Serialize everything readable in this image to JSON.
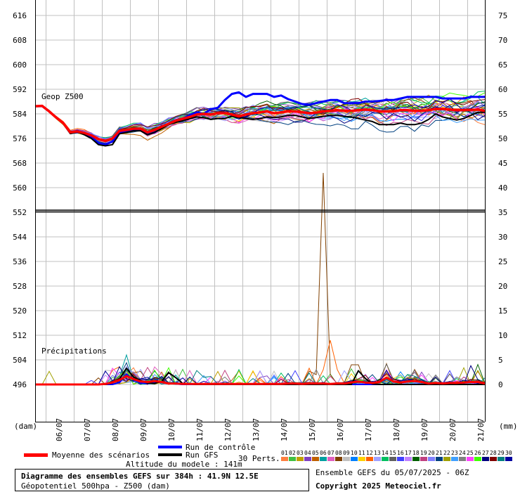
{
  "labels": {
    "geop": "Geop Z500",
    "precip": "Précipitations",
    "dam": "(dam)",
    "mm": "(mm)",
    "control": "Run de contrôle",
    "gfs": "Run GFS",
    "mean": "Moyenne des scénarios",
    "perts": "30 Perts.",
    "altitude": "Altitude du modele : 141m",
    "title": "Diagramme des ensembles GEFS sur 384h : 41.9N 12.5E",
    "subtitle": "Géopotentiel 500hpa - Z500 (dam)",
    "ensemble": "Ensemble GEFS du 05/07/2025 - 06Z",
    "copyright": "Copyright 2025 Meteociel.fr"
  },
  "colors": {
    "control": "#0000ff",
    "gfs": "#000000",
    "mean": "#ff0000",
    "grid": "#c0c0c0"
  },
  "chart_data": {
    "type": "line",
    "x": [
      "06/07",
      "07/07",
      "08/07",
      "09/07",
      "10/07",
      "11/07",
      "12/07",
      "13/07",
      "14/07",
      "15/07",
      "16/07",
      "17/07",
      "18/07",
      "19/07",
      "20/07",
      "21/07"
    ],
    "xlim": [
      0,
      384
    ],
    "y_left_ticks": [
      616,
      608,
      600,
      592,
      584,
      576,
      568,
      560,
      552,
      544,
      536,
      528,
      520,
      512,
      504,
      496
    ],
    "y_right_ticks_top": [
      75,
      70,
      65,
      60,
      55,
      50,
      45,
      40,
      35
    ],
    "y_right_ticks_bottom": [
      30,
      25,
      20,
      15,
      10,
      5,
      0
    ],
    "z500": {
      "ylim": [
        552,
        620
      ],
      "time_h": [
        0,
        6,
        12,
        18,
        24,
        30,
        36,
        42,
        48,
        54,
        60,
        66,
        72,
        78,
        84,
        90,
        96,
        102,
        108,
        114,
        120,
        126,
        132,
        138,
        144,
        150,
        156,
        162,
        168,
        174,
        180,
        186,
        192,
        198,
        204,
        210,
        216,
        222,
        228,
        234,
        240,
        246,
        252,
        258,
        264,
        270,
        276,
        282,
        288,
        294,
        300,
        306,
        312,
        318,
        324,
        330,
        336,
        342,
        348,
        354,
        360,
        366,
        372,
        378,
        384
      ],
      "control": [
        586.5,
        586.5,
        584.8,
        582.8,
        581,
        577.8,
        578.5,
        577.5,
        576.5,
        574.5,
        574,
        575,
        578,
        578.5,
        578.8,
        578.8,
        577.5,
        578,
        579.5,
        580.8,
        582,
        582.5,
        583.5,
        584.5,
        584,
        585.5,
        586,
        588.5,
        590.5,
        591,
        589.5,
        590.5,
        590.5,
        590.5,
        589.5,
        590,
        588.8,
        588,
        587.2,
        587,
        587.5,
        588,
        588.5,
        588.5,
        587.5,
        587.5,
        587.5,
        588,
        588,
        588.2,
        588.5,
        588.5,
        589,
        589.5,
        589.5,
        589.5,
        589.5,
        589.5,
        589,
        589,
        589,
        589,
        589.5,
        589.5,
        589.5
      ],
      "gfs": [
        586.5,
        586.5,
        584.8,
        582.8,
        580.8,
        577.6,
        578.2,
        577.2,
        576,
        574,
        573.6,
        574,
        577.5,
        578,
        578.5,
        578.5,
        577.2,
        578,
        579.2,
        580.5,
        581.2,
        581.8,
        582.5,
        583,
        582.8,
        582.2,
        582.5,
        582.5,
        583.2,
        582.8,
        582.5,
        582.2,
        582.5,
        583,
        582.8,
        583,
        583.5,
        583.5,
        583,
        582.5,
        582.8,
        583.2,
        583.5,
        583.5,
        583.2,
        583,
        582.5,
        582,
        581.5,
        580.5,
        580.5,
        580.5,
        581,
        580.5,
        580.5,
        581,
        582.2,
        584,
        583,
        582.5,
        582,
        582.5,
        583.5,
        584.5,
        584.5
      ],
      "mean": [
        586.5,
        586.6,
        584.8,
        582.8,
        581,
        578,
        578.3,
        577.8,
        577,
        575.8,
        575.2,
        576,
        578.5,
        578.8,
        579.2,
        579.2,
        578,
        578.8,
        579.8,
        580.8,
        581.8,
        582.4,
        583,
        583.8,
        584,
        583.8,
        584.2,
        584.2,
        583.8,
        583.2,
        583.8,
        584.2,
        584.5,
        584.8,
        584.2,
        584.5,
        584.8,
        584.8,
        584.5,
        584.2,
        584.4,
        584.8,
        585,
        585.2,
        585,
        585,
        585.2,
        585.4,
        585.2,
        584.8,
        584.8,
        584.8,
        585.2,
        585.2,
        585,
        585,
        585.2,
        585.6,
        585.6,
        585.4,
        585.2,
        585.2,
        585.3,
        585.4,
        585
      ]
    },
    "precip": {
      "ylim": [
        0,
        35
      ],
      "peak_time_h": 246,
      "peak_mm": 43,
      "mean": [
        0,
        0,
        0,
        0,
        0,
        0,
        0,
        0,
        0,
        0,
        0.1,
        0.4,
        0.9,
        1.7,
        1.1,
        0.6,
        0.5,
        0.7,
        0.5,
        0.2,
        0.2,
        0.1,
        0.1,
        0.1,
        0.1,
        0.1,
        0.1,
        0.1,
        0.1,
        0.1,
        0.1,
        0.1,
        0.1,
        0.1,
        0.1,
        0.1,
        0.2,
        0.2,
        0.1,
        0.2,
        0.2,
        0.2,
        0.1,
        0.2,
        0.2,
        0.4,
        0.6,
        0.4,
        0.3,
        0.5,
        1.4,
        0.6,
        0.4,
        0.6,
        0.7,
        0.5,
        0.2,
        0.3,
        0.2,
        0.3,
        0.3,
        0.4,
        0.5,
        0.5,
        0.2
      ],
      "gfs": [
        0,
        0,
        0,
        0,
        0,
        0,
        0,
        0,
        0,
        0,
        0,
        0.3,
        1.1,
        3.3,
        1.5,
        0.8,
        0.3,
        0.2,
        0.6,
        2.4,
        1.4,
        0.2,
        0.1,
        0,
        0,
        0,
        0,
        0,
        0,
        0,
        0,
        0,
        0,
        0,
        0,
        0,
        0,
        0,
        0,
        0,
        0,
        0,
        0,
        0,
        0,
        0,
        2.8,
        1.2,
        0.1,
        0,
        0,
        0,
        0,
        0,
        0,
        0,
        0,
        0,
        0,
        0,
        0,
        0,
        0,
        0,
        0
      ],
      "control": [
        0,
        0,
        0,
        0,
        0,
        0,
        0,
        0,
        0,
        0,
        0,
        0,
        0.4,
        2.1,
        0.9,
        0.3,
        0.2,
        0.4,
        0.6,
        0.2,
        0.1,
        0,
        0,
        0,
        0,
        0,
        0,
        0,
        0,
        0,
        0,
        0,
        0,
        0,
        0,
        0,
        0,
        0,
        0,
        0,
        0,
        0,
        0,
        0,
        0,
        0,
        0,
        0,
        0,
        0,
        0,
        0,
        0,
        0,
        0,
        0,
        0,
        0,
        0,
        0,
        0,
        0,
        0,
        0,
        0
      ]
    },
    "members": [
      "01",
      "02",
      "03",
      "04",
      "05",
      "06",
      "07",
      "08",
      "09",
      "10",
      "11",
      "12",
      "13",
      "14",
      "15",
      "16",
      "17",
      "18",
      "19",
      "20",
      "21",
      "22",
      "23",
      "24",
      "25",
      "26",
      "27",
      "28",
      "29",
      "30"
    ],
    "member_colors": [
      "#ff8040",
      "#40c040",
      "#c0a000",
      "#8040c0",
      "#c06000",
      "#00a0a0",
      "#e060c0",
      "#804000",
      "#c0c0c0",
      "#0080ff",
      "#ffd000",
      "#ff6000",
      "#a0a0ff",
      "#00c060",
      "#606060",
      "#4040ff",
      "#c080ff",
      "#006000",
      "#c04080",
      "#8080ff",
      "#004080",
      "#a0a000",
      "#40a0ff",
      "#808080",
      "#ff40ff",
      "#40ff00",
      "#000080",
      "#800000",
      "#008080",
      "#0000a0"
    ]
  }
}
